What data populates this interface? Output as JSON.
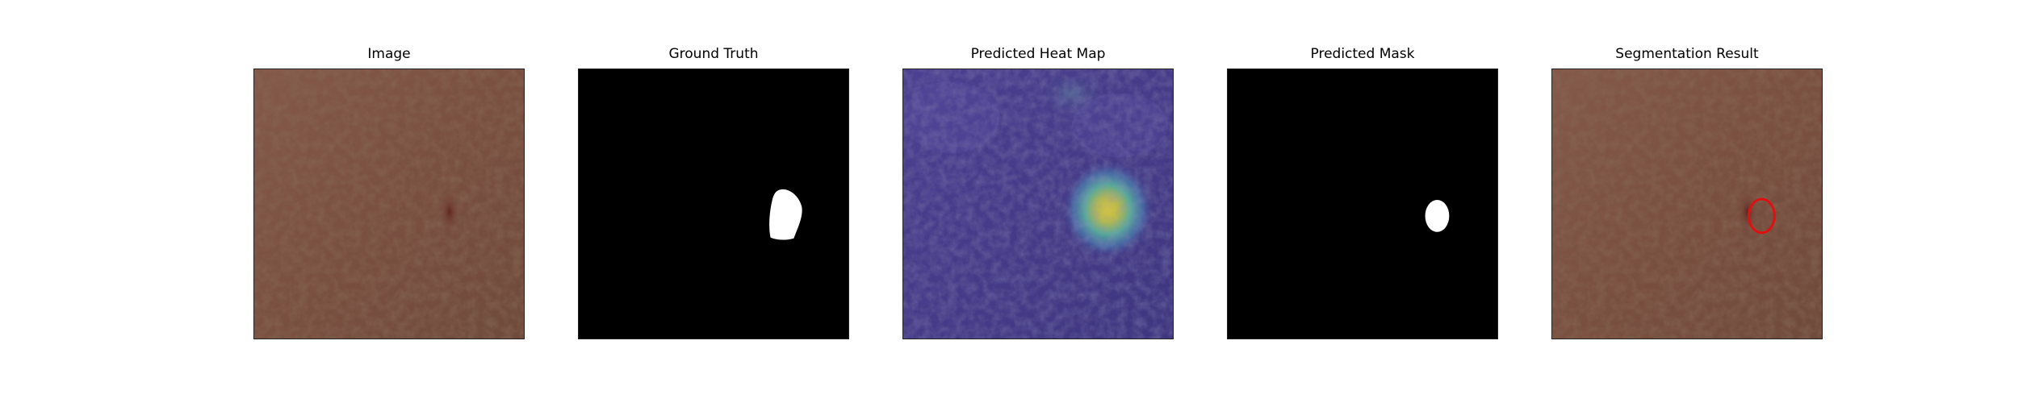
{
  "panels": [
    {
      "title": "Image"
    },
    {
      "title": "Ground Truth"
    },
    {
      "title": "Predicted Heat Map"
    },
    {
      "title": "Predicted Mask"
    },
    {
      "title": "Segmentation Result"
    }
  ],
  "colors": {
    "leather": "#7d5343",
    "defect": "#6a2a22",
    "mask_background": "#000000",
    "mask_foreground": "#ffffff",
    "heatmap_base": "#4a3e8e",
    "heatmap_hot": "#d8c640",
    "contour": "#e01010"
  }
}
